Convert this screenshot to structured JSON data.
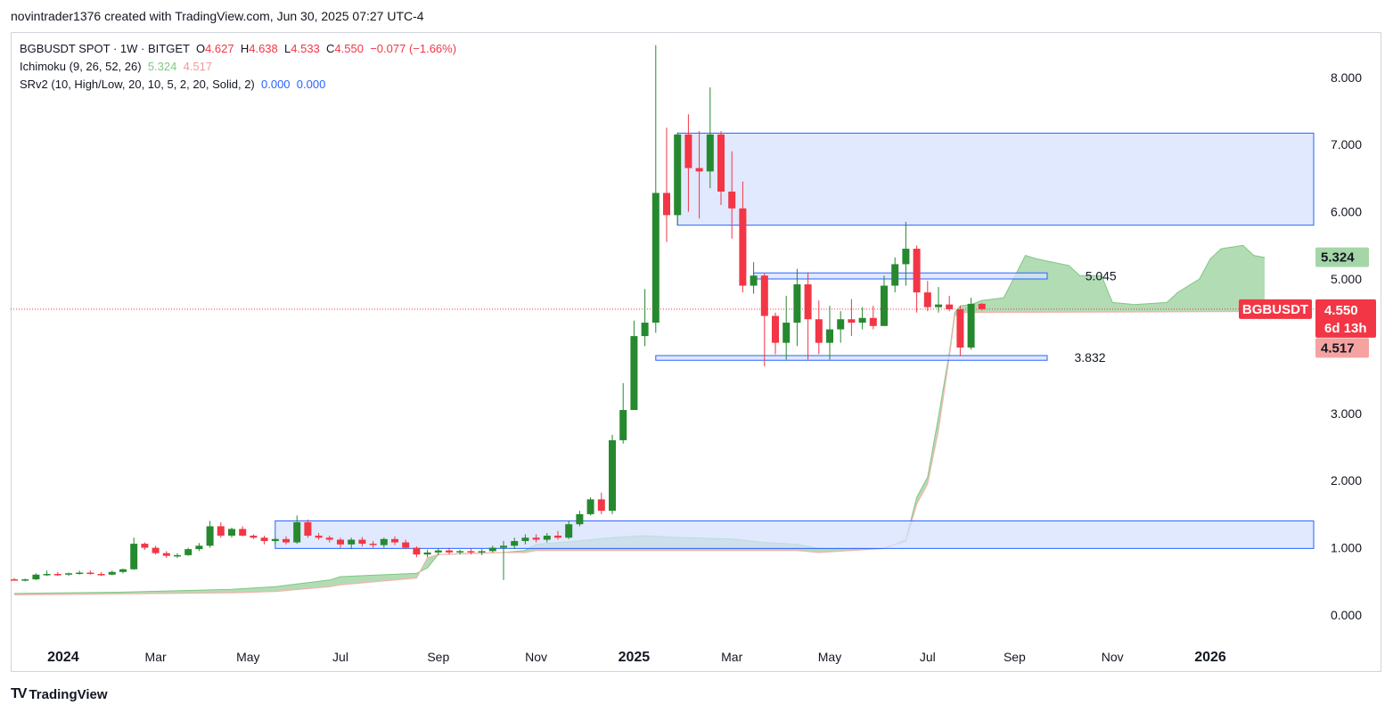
{
  "header": {
    "text": "novintrader1376 created with TradingView.com, Jun 30, 2025 07:27 UTC-4"
  },
  "legend": {
    "symbol": "BGBUSDT SPOT · 1W · BITGET",
    "o_label": "O",
    "o": "4.627",
    "h_label": "H",
    "h": "4.638",
    "l_label": "L",
    "l": "4.533",
    "c_label": "C",
    "c": "4.550",
    "change": "−0.077 (−1.66%)",
    "ichimoku_label": "Ichimoku (9, 26, 52, 26)",
    "ichimoku_a": "5.324",
    "ichimoku_b": "4.517",
    "srv2_label": "SRv2 (10, High/Low, 20, 10, 5, 2, 20, Solid, 2)",
    "srv2_a": "0.000",
    "srv2_b": "0.000"
  },
  "footer": {
    "logo": "TV",
    "brand": "TradingView"
  },
  "colors": {
    "up": "#26892f",
    "down": "#f23645",
    "cloud_green": "#a5d6a7",
    "cloud_red": "#f4b3ae",
    "zone_fill": "#d6e2fd",
    "zone_stroke": "#2962ff",
    "price_line": "#f23645"
  },
  "chart_data": {
    "type": "candlestick",
    "title": "BGBUSDT SPOT · 1W · BITGET",
    "ylim": [
      0,
      8.5
    ],
    "y_ticks": [
      "0.000",
      "1.000",
      "2.000",
      "3.000",
      "4.000",
      "5.000",
      "6.000",
      "7.000",
      "8.000"
    ],
    "x_ticks": [
      {
        "label": "2024",
        "bold": true,
        "t": 4.5
      },
      {
        "label": "Mar",
        "bold": false,
        "t": 13
      },
      {
        "label": "May",
        "bold": false,
        "t": 21.5
      },
      {
        "label": "Jul",
        "bold": false,
        "t": 30
      },
      {
        "label": "Sep",
        "bold": false,
        "t": 39
      },
      {
        "label": "Nov",
        "bold": false,
        "t": 48
      },
      {
        "label": "2025",
        "bold": true,
        "t": 57
      },
      {
        "label": "Mar",
        "bold": false,
        "t": 66
      },
      {
        "label": "May",
        "bold": false,
        "t": 75
      },
      {
        "label": "Jul",
        "bold": false,
        "t": 84
      },
      {
        "label": "Sep",
        "bold": false,
        "t": 92
      },
      {
        "label": "Nov",
        "bold": false,
        "t": 101
      },
      {
        "label": "2026",
        "bold": true,
        "t": 110
      }
    ],
    "candles": [
      [
        0.53,
        0.55,
        0.51,
        0.52
      ],
      [
        0.52,
        0.54,
        0.5,
        0.53
      ],
      [
        0.53,
        0.62,
        0.52,
        0.6
      ],
      [
        0.6,
        0.66,
        0.58,
        0.61
      ],
      [
        0.61,
        0.64,
        0.58,
        0.6
      ],
      [
        0.6,
        0.63,
        0.58,
        0.62
      ],
      [
        0.62,
        0.66,
        0.6,
        0.63
      ],
      [
        0.63,
        0.66,
        0.6,
        0.61
      ],
      [
        0.61,
        0.64,
        0.58,
        0.6
      ],
      [
        0.6,
        0.66,
        0.59,
        0.64
      ],
      [
        0.64,
        0.69,
        0.62,
        0.68
      ],
      [
        0.68,
        1.15,
        0.67,
        1.06
      ],
      [
        1.06,
        1.08,
        0.97,
        1.0
      ],
      [
        1.0,
        1.03,
        0.9,
        0.92
      ],
      [
        0.92,
        0.95,
        0.85,
        0.88
      ],
      [
        0.88,
        0.92,
        0.85,
        0.89
      ],
      [
        0.89,
        1.0,
        0.88,
        0.98
      ],
      [
        0.98,
        1.07,
        0.95,
        1.03
      ],
      [
        1.03,
        1.4,
        1.0,
        1.32
      ],
      [
        1.32,
        1.38,
        1.15,
        1.18
      ],
      [
        1.18,
        1.3,
        1.15,
        1.28
      ],
      [
        1.28,
        1.32,
        1.17,
        1.18
      ],
      [
        1.18,
        1.2,
        1.13,
        1.15
      ],
      [
        1.15,
        1.18,
        1.05,
        1.1
      ],
      [
        1.1,
        1.15,
        1.06,
        1.13
      ],
      [
        1.13,
        1.17,
        1.05,
        1.08
      ],
      [
        1.08,
        1.48,
        1.06,
        1.38
      ],
      [
        1.38,
        1.42,
        1.15,
        1.18
      ],
      [
        1.18,
        1.22,
        1.12,
        1.15
      ],
      [
        1.15,
        1.18,
        1.08,
        1.12
      ],
      [
        1.12,
        1.15,
        1.0,
        1.05
      ],
      [
        1.05,
        1.15,
        0.98,
        1.12
      ],
      [
        1.12,
        1.16,
        1.02,
        1.06
      ],
      [
        1.06,
        1.1,
        1.0,
        1.04
      ],
      [
        1.04,
        1.15,
        1.0,
        1.13
      ],
      [
        1.13,
        1.17,
        1.04,
        1.08
      ],
      [
        1.08,
        1.12,
        0.98,
        1.0
      ],
      [
        1.0,
        1.02,
        0.86,
        0.9
      ],
      [
        0.9,
        0.97,
        0.86,
        0.93
      ],
      [
        0.93,
        0.99,
        0.89,
        0.96
      ],
      [
        0.96,
        1.0,
        0.9,
        0.93
      ],
      [
        0.93,
        0.97,
        0.9,
        0.95
      ],
      [
        0.95,
        0.99,
        0.9,
        0.93
      ],
      [
        0.93,
        0.98,
        0.89,
        0.95
      ],
      [
        0.95,
        1.03,
        0.93,
        1.0
      ],
      [
        1.0,
        1.1,
        0.52,
        1.03
      ],
      [
        1.03,
        1.15,
        0.98,
        1.1
      ],
      [
        1.1,
        1.2,
        1.05,
        1.15
      ],
      [
        1.15,
        1.2,
        1.08,
        1.12
      ],
      [
        1.12,
        1.22,
        1.08,
        1.18
      ],
      [
        1.18,
        1.25,
        1.12,
        1.15
      ],
      [
        1.15,
        1.4,
        1.13,
        1.35
      ],
      [
        1.35,
        1.55,
        1.32,
        1.5
      ],
      [
        1.5,
        1.75,
        1.48,
        1.72
      ],
      [
        1.72,
        1.82,
        1.5,
        1.55
      ],
      [
        1.55,
        2.68,
        1.5,
        2.6
      ],
      [
        2.6,
        3.45,
        2.55,
        3.05
      ],
      [
        3.05,
        4.38,
        3.05,
        4.15
      ],
      [
        4.15,
        4.85,
        4.0,
        4.35
      ],
      [
        4.35,
        8.48,
        4.2,
        6.28
      ],
      [
        6.28,
        7.25,
        5.55,
        5.95
      ],
      [
        5.95,
        7.18,
        5.8,
        7.15
      ],
      [
        7.15,
        7.45,
        6.0,
        6.65
      ],
      [
        6.65,
        7.2,
        5.9,
        6.6
      ],
      [
        6.6,
        7.85,
        6.35,
        7.15
      ],
      [
        7.15,
        7.2,
        6.1,
        6.3
      ],
      [
        6.3,
        6.9,
        5.6,
        6.05
      ],
      [
        6.05,
        6.45,
        4.8,
        4.9
      ],
      [
        4.9,
        5.25,
        4.78,
        5.05
      ],
      [
        5.05,
        5.08,
        3.7,
        4.45
      ],
      [
        4.45,
        4.5,
        3.88,
        4.05
      ],
      [
        4.05,
        4.75,
        3.8,
        4.35
      ],
      [
        4.35,
        5.15,
        4.0,
        4.92
      ],
      [
        4.92,
        5.1,
        3.8,
        4.4
      ],
      [
        4.4,
        4.68,
        3.88,
        4.05
      ],
      [
        4.05,
        4.6,
        3.8,
        4.25
      ],
      [
        4.25,
        4.52,
        4.05,
        4.4
      ],
      [
        4.4,
        4.7,
        4.15,
        4.35
      ],
      [
        4.35,
        4.58,
        4.25,
        4.42
      ],
      [
        4.42,
        4.6,
        4.25,
        4.3
      ],
      [
        4.3,
        5.05,
        4.3,
        4.9
      ],
      [
        4.9,
        5.32,
        4.8,
        5.22
      ],
      [
        5.22,
        5.85,
        4.9,
        5.45
      ],
      [
        5.45,
        5.5,
        4.5,
        4.8
      ],
      [
        4.8,
        4.97,
        4.52,
        4.58
      ],
      [
        4.58,
        4.88,
        4.5,
        4.62
      ],
      [
        4.62,
        4.75,
        4.52,
        4.55
      ],
      [
        4.55,
        4.6,
        3.85,
        3.98
      ],
      [
        3.98,
        4.72,
        3.95,
        4.63
      ],
      [
        4.63,
        4.64,
        4.53,
        4.55
      ]
    ],
    "zones": [
      {
        "t0": 61,
        "t1": 123,
        "y_low": 5.8,
        "y_high": 7.17
      },
      {
        "t0": 68,
        "t1": 95,
        "y_low": 5.0,
        "y_high": 5.09
      },
      {
        "t0": 59,
        "t1": 95,
        "y_low": 3.79,
        "y_high": 3.86
      },
      {
        "t0": 24,
        "t1": 123,
        "y_low": 0.99,
        "y_high": 1.4
      }
    ],
    "levels": [
      {
        "label": "5.045",
        "value": 5.045,
        "t": 98.5
      },
      {
        "label": "3.832",
        "value": 3.832,
        "t": 97.5
      }
    ],
    "ichimoku": {
      "span_a": [
        [
          0,
          0.32
        ],
        [
          10,
          0.34
        ],
        [
          20,
          0.38
        ],
        [
          24,
          0.42
        ],
        [
          29,
          0.52
        ],
        [
          30,
          0.57
        ],
        [
          37,
          0.62
        ],
        [
          38,
          0.7
        ],
        [
          39,
          0.9
        ],
        [
          45,
          0.93
        ],
        [
          47,
          0.96
        ],
        [
          48,
          1.05
        ],
        [
          53,
          1.12
        ],
        [
          55,
          1.15
        ],
        [
          58,
          1.18
        ],
        [
          60,
          1.16
        ],
        [
          66,
          1.13
        ],
        [
          69,
          1.08
        ],
        [
          72,
          1.05
        ],
        [
          74,
          0.99
        ],
        [
          80,
          0.99
        ],
        [
          81,
          1.05
        ],
        [
          82,
          1.12
        ],
        [
          83,
          1.75
        ],
        [
          84,
          2.05
        ],
        [
          85,
          2.95
        ],
        [
          86,
          3.9
        ],
        [
          86.5,
          4.5
        ],
        [
          87,
          4.6
        ],
        [
          88,
          4.62
        ],
        [
          89,
          4.68
        ],
        [
          91,
          4.72
        ],
        [
          93,
          5.35
        ],
        [
          94,
          5.3
        ],
        [
          97,
          5.2
        ],
        [
          98,
          5.05
        ],
        [
          100,
          5.05
        ],
        [
          101,
          4.65
        ],
        [
          103,
          4.62
        ],
        [
          106,
          4.65
        ],
        [
          107,
          4.8
        ],
        [
          108,
          4.9
        ],
        [
          109,
          5.0
        ],
        [
          110,
          5.3
        ],
        [
          111,
          5.45
        ],
        [
          113,
          5.5
        ],
        [
          114,
          5.35
        ],
        [
          115,
          5.32
        ]
      ],
      "span_b": [
        [
          0,
          0.3
        ],
        [
          20,
          0.33
        ],
        [
          24,
          0.35
        ],
        [
          29,
          0.42
        ],
        [
          30,
          0.45
        ],
        [
          37,
          0.55
        ],
        [
          38,
          0.85
        ],
        [
          39,
          0.9
        ],
        [
          45,
          0.93
        ],
        [
          47,
          0.93
        ],
        [
          48,
          0.96
        ],
        [
          53,
          0.96
        ],
        [
          58,
          0.96
        ],
        [
          60,
          0.96
        ],
        [
          66,
          0.96
        ],
        [
          69,
          0.96
        ],
        [
          72,
          0.96
        ],
        [
          74,
          0.93
        ],
        [
          80,
          0.99
        ],
        [
          81,
          1.05
        ],
        [
          82,
          1.1
        ],
        [
          83,
          1.65
        ],
        [
          84,
          1.95
        ],
        [
          85,
          2.75
        ],
        [
          86,
          3.85
        ],
        [
          86.5,
          4.45
        ],
        [
          87,
          4.5
        ],
        [
          115,
          4.517
        ]
      ]
    },
    "last_price": {
      "value": 4.55,
      "symbol": "BGBUSDT",
      "label": "4.550",
      "countdown": "6d 13h"
    },
    "span_a_tag": {
      "value": 5.324,
      "label": "5.324"
    },
    "span_b_tag": {
      "value": 4.517,
      "label": "4.517"
    }
  }
}
